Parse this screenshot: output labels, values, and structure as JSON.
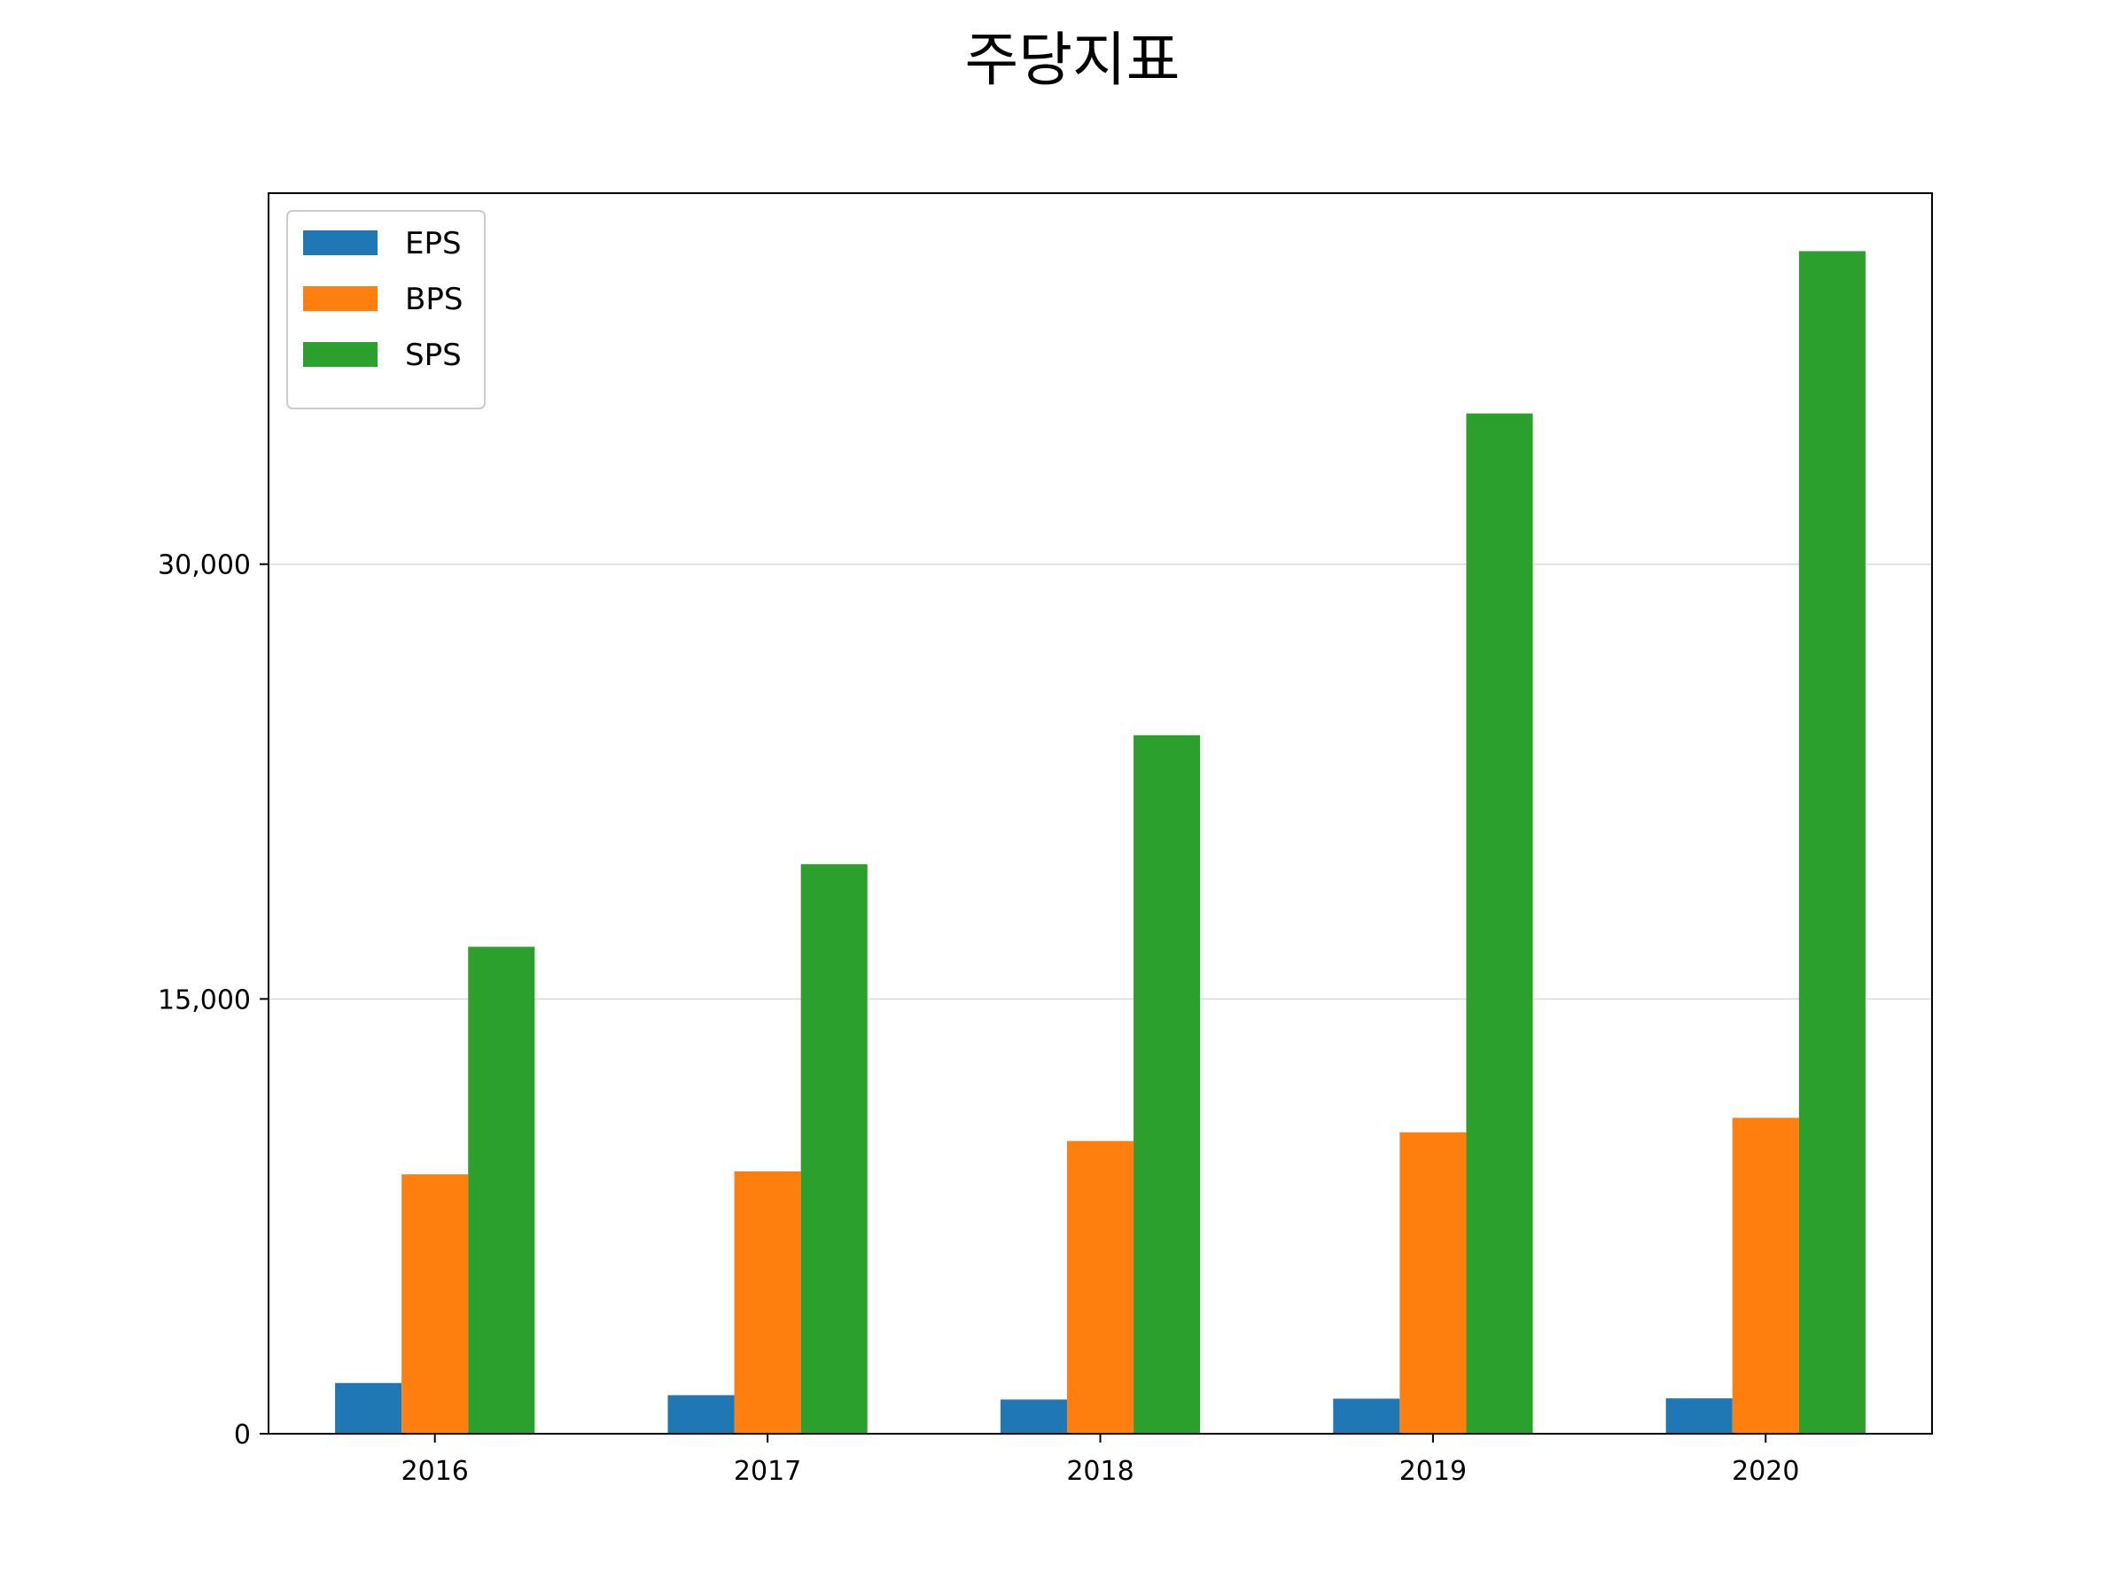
{
  "chart_data": {
    "type": "bar",
    "title": "주당지표",
    "xlabel": "",
    "ylabel": "",
    "categories": [
      "2016",
      "2017",
      "2018",
      "2019",
      "2020"
    ],
    "series": [
      {
        "name": "EPS",
        "color": "#1f77b4",
        "values": [
          1750,
          1330,
          1180,
          1210,
          1220
        ]
      },
      {
        "name": "BPS",
        "color": "#ff7f0e",
        "values": [
          8950,
          9050,
          10100,
          10400,
          10900
        ]
      },
      {
        "name": "SPS",
        "color": "#2ca02c",
        "values": [
          16800,
          19650,
          24100,
          35200,
          40800
        ]
      }
    ],
    "ylim": [
      0,
      42800
    ],
    "yticks": [
      0,
      15000,
      30000
    ],
    "ytick_labels": [
      "0",
      "15,000",
      "30,000"
    ],
    "grid": "horizontal",
    "legend": "top-left"
  }
}
